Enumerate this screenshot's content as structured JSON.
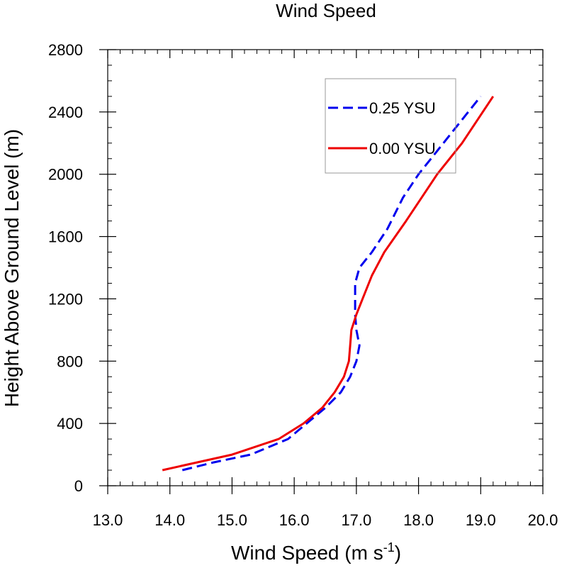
{
  "chart_data": {
    "type": "line",
    "title": "Wind Speed",
    "xlabel": "Wind Speed (m s",
    "xlabel_superscript": "-1",
    "xlabel_suffix": ")",
    "ylabel": "Height Above Ground Level (m)",
    "xlim": [
      13.0,
      20.0
    ],
    "ylim": [
      0,
      2800
    ],
    "x_ticks": [
      13.0,
      14.0,
      15.0,
      16.0,
      17.0,
      18.0,
      19.0,
      20.0
    ],
    "x_tick_labels": [
      "13.0",
      "14.0",
      "15.0",
      "16.0",
      "17.0",
      "18.0",
      "19.0",
      "20.0"
    ],
    "y_ticks": [
      0,
      400,
      800,
      1200,
      1600,
      2000,
      2400,
      2800
    ],
    "y_tick_labels": [
      "0",
      "400",
      "800",
      "1200",
      "1600",
      "2000",
      "2400",
      "2800"
    ],
    "grid": false,
    "legend_position": "top-right",
    "series": [
      {
        "name": "0.25 YSU",
        "color": "#0000ee",
        "dash": "dashed",
        "points": [
          [
            14.2,
            100
          ],
          [
            14.7,
            150
          ],
          [
            15.3,
            200
          ],
          [
            15.9,
            300
          ],
          [
            16.2,
            400
          ],
          [
            16.5,
            500
          ],
          [
            16.75,
            600
          ],
          [
            16.9,
            700
          ],
          [
            17.0,
            800
          ],
          [
            17.05,
            900
          ],
          [
            17.0,
            1000
          ],
          [
            16.98,
            1100
          ],
          [
            16.98,
            1200
          ],
          [
            16.98,
            1300
          ],
          [
            17.05,
            1400
          ],
          [
            17.25,
            1500
          ],
          [
            17.5,
            1650
          ],
          [
            17.75,
            1850
          ],
          [
            18.0,
            2000
          ],
          [
            18.3,
            2150
          ],
          [
            18.6,
            2300
          ],
          [
            19.0,
            2500
          ]
        ]
      },
      {
        "name": "0.00 YSU",
        "color": "#ee0000",
        "dash": "solid",
        "points": [
          [
            13.88,
            100
          ],
          [
            15.0,
            200
          ],
          [
            15.75,
            300
          ],
          [
            16.15,
            400
          ],
          [
            16.45,
            500
          ],
          [
            16.65,
            600
          ],
          [
            16.8,
            700
          ],
          [
            16.88,
            800
          ],
          [
            16.9,
            900
          ],
          [
            16.92,
            1000
          ],
          [
            17.0,
            1100
          ],
          [
            17.1,
            1200
          ],
          [
            17.25,
            1350
          ],
          [
            17.45,
            1500
          ],
          [
            17.8,
            1700
          ],
          [
            18.3,
            2000
          ],
          [
            18.7,
            2200
          ],
          [
            19.2,
            2500
          ]
        ]
      }
    ]
  }
}
